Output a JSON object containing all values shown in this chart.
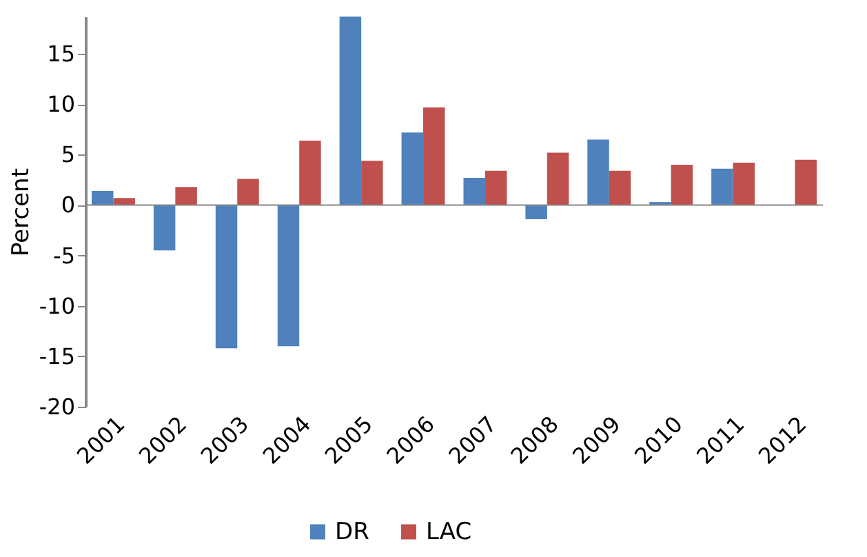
{
  "chart_data": {
    "type": "bar",
    "ylabel": "Percent",
    "categories": [
      "2001",
      "2002",
      "2003",
      "2004",
      "2005",
      "2006",
      "2007",
      "2008",
      "2009",
      "2010",
      "2011",
      "2012"
    ],
    "series": [
      {
        "name": "DR",
        "color": "#4f81bd",
        "values": [
          1.4,
          -4.5,
          -14.2,
          -14.0,
          18.7,
          7.2,
          2.7,
          -1.4,
          6.5,
          0.3,
          3.6,
          null
        ]
      },
      {
        "name": "LAC",
        "color": "#c0504d",
        "values": [
          0.7,
          1.8,
          2.6,
          6.4,
          4.4,
          9.7,
          3.4,
          5.2,
          3.4,
          4.0,
          4.2,
          4.5
        ]
      }
    ],
    "ylim": [
      -20,
      18.7
    ],
    "yticks": [
      -20,
      -15,
      -10,
      -5,
      0,
      5,
      10,
      15
    ],
    "legend": "bottom"
  }
}
